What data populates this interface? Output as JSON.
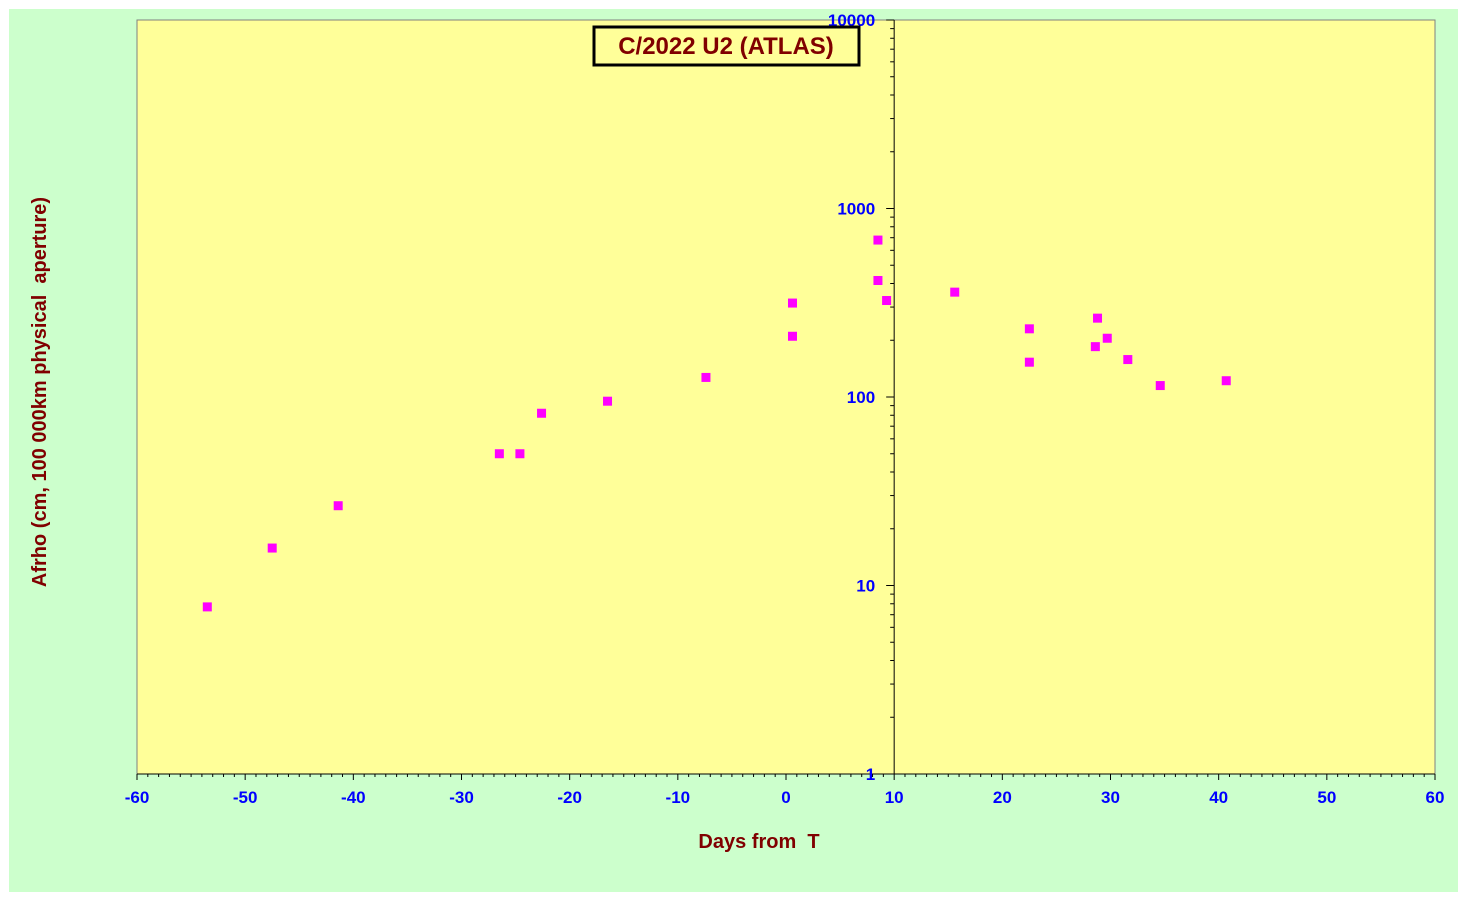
{
  "colors": {
    "outer_background": "#CCFFCC",
    "plot_background": "#FFFF99",
    "title_color": "#800000",
    "axis_label_color": "#800000",
    "tick_label_color": "#0000FF",
    "marker_color": "#FF00FF"
  },
  "chart_data": {
    "type": "scatter",
    "title": "C/2022 U2 (ATLAS)",
    "xlabel": "Days from  T",
    "ylabel": "Afrho (cm, 100 000km physical  aperture)",
    "x_scale": "linear",
    "y_scale": "log",
    "xlim": [
      -60,
      60
    ],
    "ylim": [
      1,
      10000
    ],
    "x_ticks": [
      -60,
      -50,
      -40,
      -30,
      -20,
      -10,
      0,
      10,
      20,
      30,
      40,
      50,
      60
    ],
    "x_tick_labels": [
      "-60",
      "-50",
      "-40",
      "-30",
      "-20",
      "-10",
      "0",
      "10",
      "20",
      "30",
      "40",
      "50",
      "60"
    ],
    "y_ticks": [
      1,
      10,
      100,
      1000,
      10000
    ],
    "y_tick_labels": [
      "1",
      "10",
      "100",
      "1000",
      "10000"
    ],
    "y_axis_crosses_x_at": 10,
    "grid": false,
    "legend": "none",
    "marker": "square",
    "series": [
      {
        "points": [
          {
            "x": -53.5,
            "y": 7.7
          },
          {
            "x": -47.5,
            "y": 15.8
          },
          {
            "x": -41.4,
            "y": 26.5
          },
          {
            "x": -26.5,
            "y": 50
          },
          {
            "x": -24.6,
            "y": 50
          },
          {
            "x": -22.6,
            "y": 82
          },
          {
            "x": -16.5,
            "y": 95
          },
          {
            "x": -7.4,
            "y": 127
          },
          {
            "x": 0.6,
            "y": 210
          },
          {
            "x": 0.6,
            "y": 315
          },
          {
            "x": 8.5,
            "y": 680
          },
          {
            "x": 8.5,
            "y": 415
          },
          {
            "x": 9.3,
            "y": 325
          },
          {
            "x": 15.6,
            "y": 360
          },
          {
            "x": 22.5,
            "y": 230
          },
          {
            "x": 22.5,
            "y": 153
          },
          {
            "x": 28.6,
            "y": 185
          },
          {
            "x": 28.8,
            "y": 262
          },
          {
            "x": 29.7,
            "y": 205
          },
          {
            "x": 31.6,
            "y": 158
          },
          {
            "x": 34.6,
            "y": 115
          },
          {
            "x": 40.7,
            "y": 122
          }
        ]
      }
    ]
  }
}
